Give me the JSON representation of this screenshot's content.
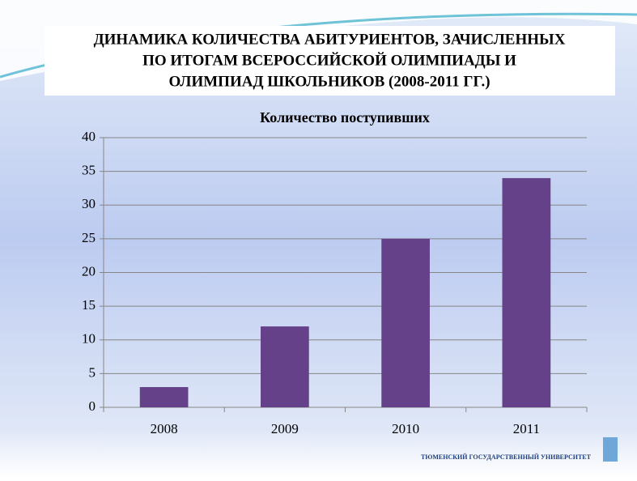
{
  "slide": {
    "title_lines": [
      "ДИНАМИКА КОЛИЧЕСТВА АБИТУРИЕНТОВ, ЗАЧИСЛЕННЫХ",
      "ПО ИТОГАМ ВСЕРОССИЙСКОЙ ОЛИМПИАДЫ И",
      "ОЛИМПИАД ШКОЛЬНИКОВ (2008-2011 ГГ.)"
    ],
    "footer": "ТЮМЕНСКИЙ ГОСУДАРСТВЕННЫЙ УНИВЕРСИТЕТ"
  },
  "chart_data": {
    "type": "bar",
    "title": "Количество поступивших",
    "categories": [
      "2008",
      "2009",
      "2010",
      "2011"
    ],
    "values": [
      3,
      12,
      25,
      34
    ],
    "color": "#654189",
    "ylim": [
      0,
      40
    ],
    "yticks": [
      0,
      5,
      10,
      15,
      20,
      25,
      30,
      35,
      40
    ],
    "grid": true
  }
}
